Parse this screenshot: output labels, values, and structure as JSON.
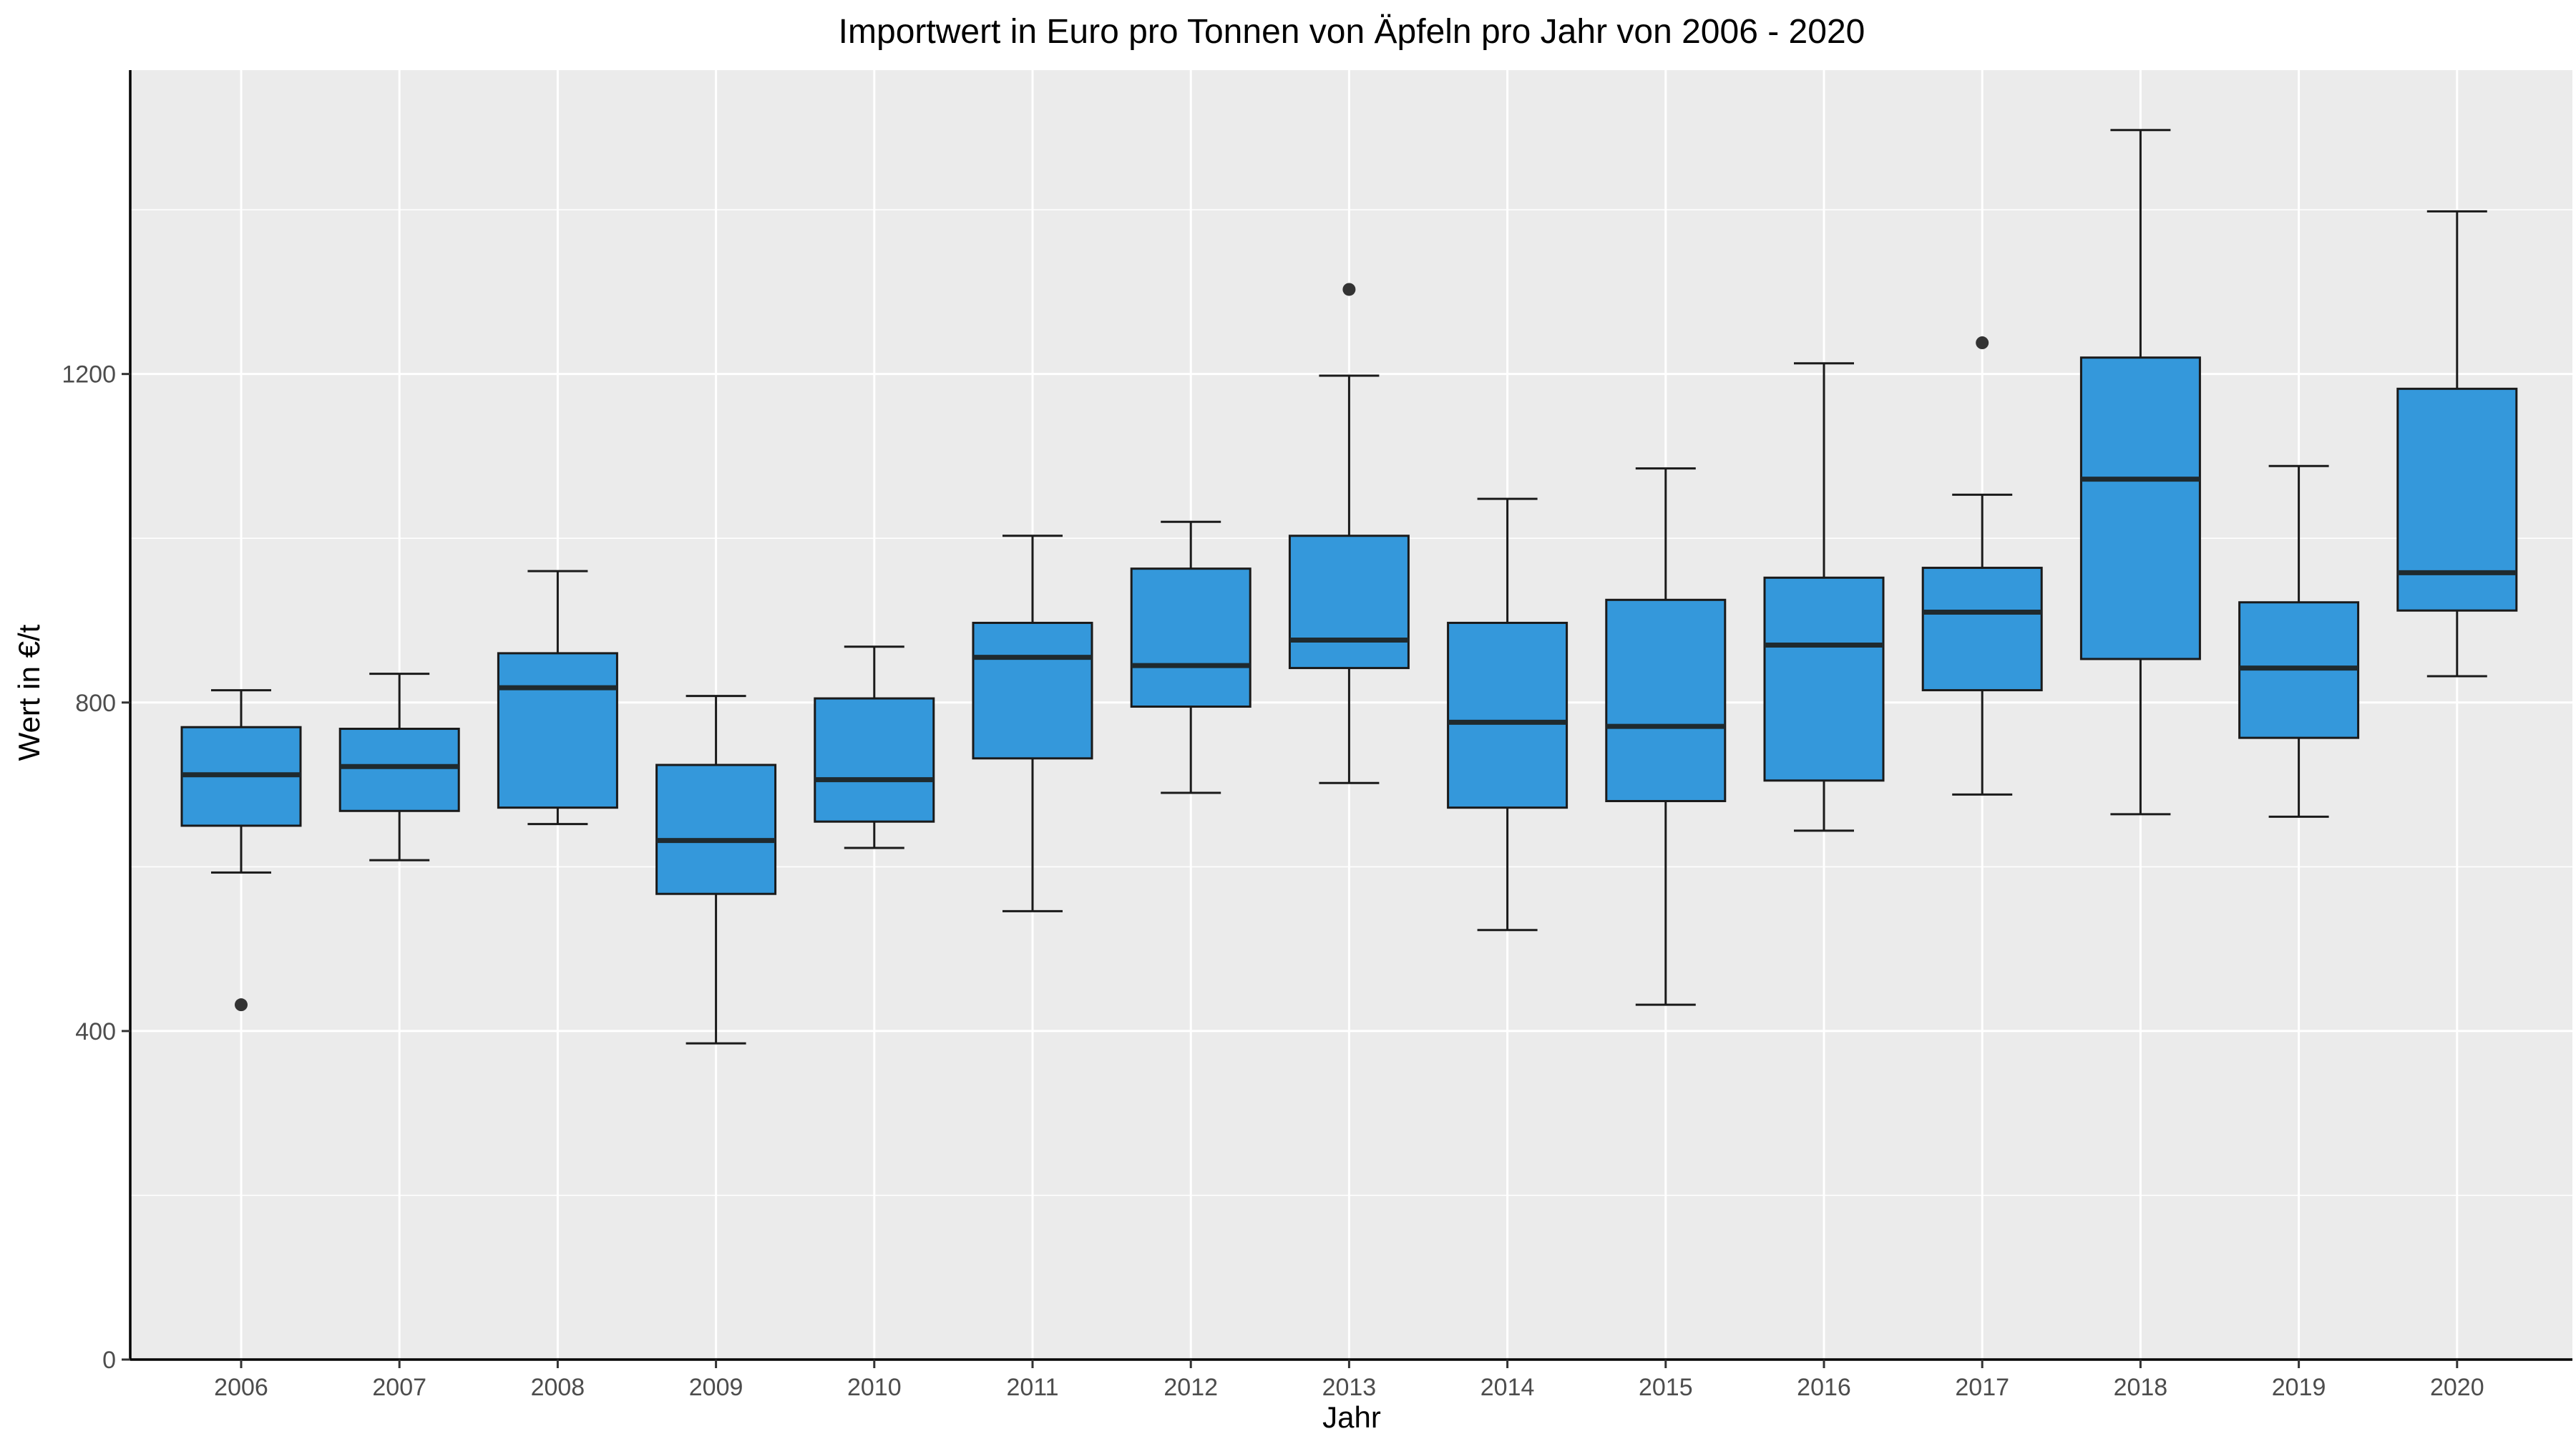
{
  "chart_data": {
    "type": "boxplot",
    "title": "Importwert in Euro pro Tonnen von Äpfeln pro Jahr von 2006 - 2020",
    "xlabel": "Jahr",
    "ylabel": "Wert in €/t",
    "ylim": [
      0,
      1570
    ],
    "y_ticks": [
      0,
      400,
      800,
      1200
    ],
    "y_minor_ticks": [
      200,
      600,
      1000,
      1400
    ],
    "grid": true,
    "fill_color": "#3498db",
    "categories": [
      "2006",
      "2007",
      "2008",
      "2009",
      "2010",
      "2011",
      "2012",
      "2013",
      "2014",
      "2015",
      "2016",
      "2017",
      "2018",
      "2019",
      "2020"
    ],
    "boxes": [
      {
        "year": "2006",
        "whisker_low": 593,
        "q1": 650,
        "median": 712,
        "q3": 770,
        "whisker_high": 815,
        "outliers": [
          432
        ]
      },
      {
        "year": "2007",
        "whisker_low": 608,
        "q1": 668,
        "median": 722,
        "q3": 768,
        "whisker_high": 835,
        "outliers": []
      },
      {
        "year": "2008",
        "whisker_low": 652,
        "q1": 672,
        "median": 818,
        "q3": 860,
        "whisker_high": 960,
        "outliers": []
      },
      {
        "year": "2009",
        "whisker_low": 385,
        "q1": 567,
        "median": 632,
        "q3": 724,
        "whisker_high": 808,
        "outliers": []
      },
      {
        "year": "2010",
        "whisker_low": 623,
        "q1": 655,
        "median": 706,
        "q3": 805,
        "whisker_high": 868,
        "outliers": []
      },
      {
        "year": "2011",
        "whisker_low": 546,
        "q1": 732,
        "median": 855,
        "q3": 897,
        "whisker_high": 1003,
        "outliers": []
      },
      {
        "year": "2012",
        "whisker_low": 690,
        "q1": 795,
        "median": 845,
        "q3": 963,
        "whisker_high": 1020,
        "outliers": []
      },
      {
        "year": "2013",
        "whisker_low": 702,
        "q1": 842,
        "median": 876,
        "q3": 1003,
        "whisker_high": 1198,
        "outliers": [
          1303
        ]
      },
      {
        "year": "2014",
        "whisker_low": 523,
        "q1": 672,
        "median": 776,
        "q3": 897,
        "whisker_high": 1048,
        "outliers": []
      },
      {
        "year": "2015",
        "whisker_low": 432,
        "q1": 680,
        "median": 771,
        "q3": 925,
        "whisker_high": 1085,
        "outliers": []
      },
      {
        "year": "2016",
        "whisker_low": 644,
        "q1": 705,
        "median": 870,
        "q3": 952,
        "whisker_high": 1213,
        "outliers": []
      },
      {
        "year": "2017",
        "whisker_low": 688,
        "q1": 815,
        "median": 910,
        "q3": 964,
        "whisker_high": 1053,
        "outliers": [
          1238
        ]
      },
      {
        "year": "2018",
        "whisker_low": 664,
        "q1": 853,
        "median": 1072,
        "q3": 1220,
        "whisker_high": 1497,
        "outliers": []
      },
      {
        "year": "2019",
        "whisker_low": 661,
        "q1": 757,
        "median": 842,
        "q3": 922,
        "whisker_high": 1088,
        "outliers": []
      },
      {
        "year": "2020",
        "whisker_low": 832,
        "q1": 912,
        "median": 958,
        "q3": 1182,
        "whisker_high": 1398,
        "outliers": []
      }
    ]
  }
}
